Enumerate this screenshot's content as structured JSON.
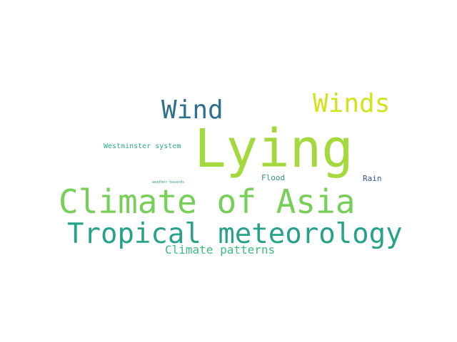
{
  "words": [
    {
      "text": "Lying",
      "color": "#a4d93d"
    },
    {
      "text": "Climate of Asia",
      "color": "#76cf56"
    },
    {
      "text": "Tropical meteorology",
      "color": "#27a289"
    },
    {
      "text": "Wind",
      "color": "#2d6f8e"
    },
    {
      "text": "Winds",
      "color": "#d2e21b"
    },
    {
      "text": "Climate patterns",
      "color": "#3dba7d"
    },
    {
      "text": "Westminster system",
      "color": "#31a98a"
    },
    {
      "text": "Flood",
      "color": "#36928c"
    },
    {
      "text": "Rain",
      "color": "#39568c"
    },
    {
      "text": "weather hazards",
      "color": "#2a9a8a"
    }
  ]
}
